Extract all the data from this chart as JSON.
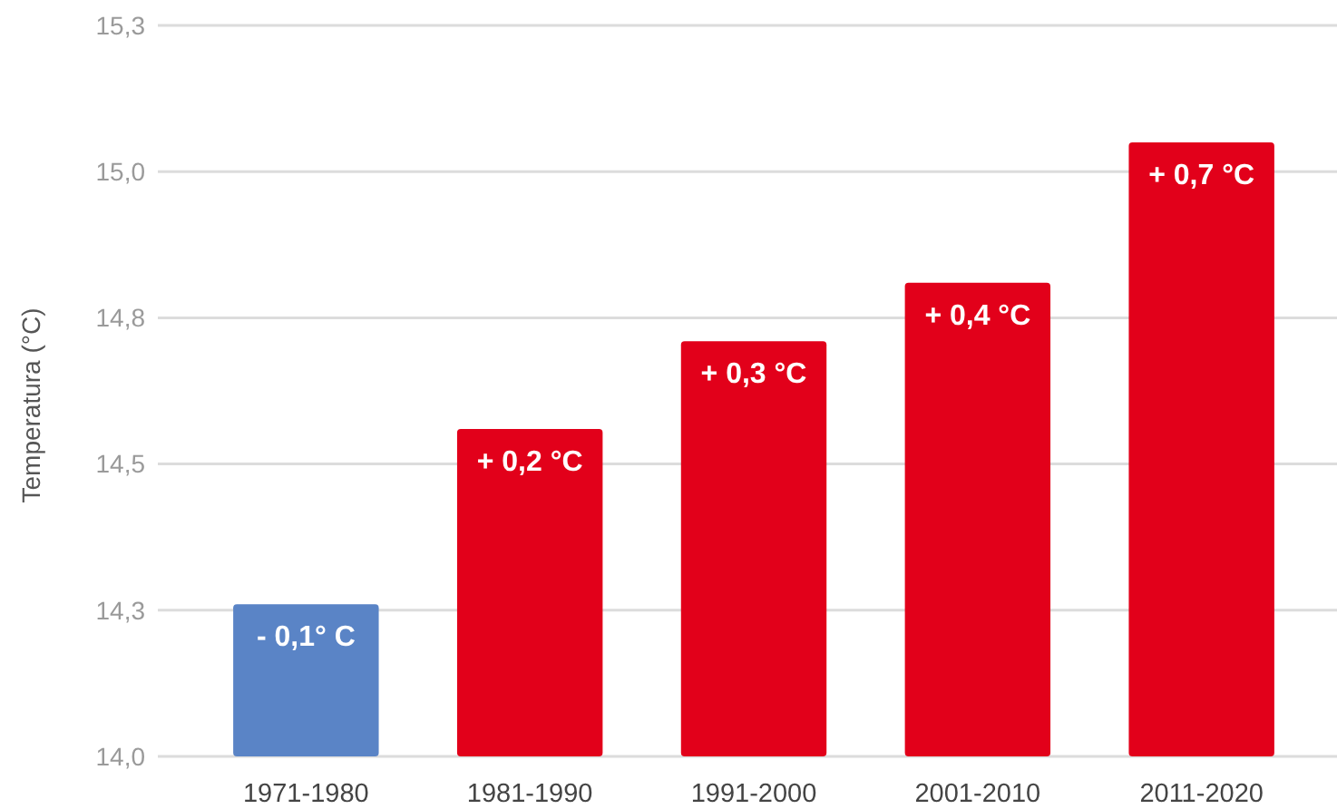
{
  "chart_data": {
    "type": "bar",
    "ylabel": "Temperatura (°C)",
    "categories": [
      "1971-1980",
      "1981-1990",
      "1991-2000",
      "2001-2010",
      "2011-2020"
    ],
    "values": [
      14.26,
      14.56,
      14.71,
      14.81,
      15.05
    ],
    "colors": [
      "#5a84c6",
      "#e2001a",
      "#e2001a",
      "#e2001a",
      "#e2001a"
    ],
    "annotations": [
      {
        "text": "- 0,1° C",
        "x": "1971-1980",
        "y": 14.26
      },
      {
        "text": "+ 0,2 °C",
        "x": "1981-1990",
        "y": 14.56
      },
      {
        "text": "+ 0,3 °C",
        "x": "1991-2000",
        "y": 14.71
      },
      {
        "text": "+ 0,4 °C",
        "x": "2001-2010",
        "y": 14.81
      },
      {
        "text": "+ 0,7 °C",
        "x": "2011-2020",
        "y": 15.05
      }
    ],
    "ylim": [
      14,
      15.25
    ],
    "yticks": [
      {
        "value": 14,
        "label": "14,0"
      },
      {
        "value": 14.25,
        "label": "14,3"
      },
      {
        "value": 14.5,
        "label": "14,5"
      },
      {
        "value": 14.75,
        "label": "14,8"
      },
      {
        "value": 15,
        "label": "15,0"
      },
      {
        "value": 15.25,
        "label": "15,3"
      }
    ],
    "grid": "y"
  }
}
